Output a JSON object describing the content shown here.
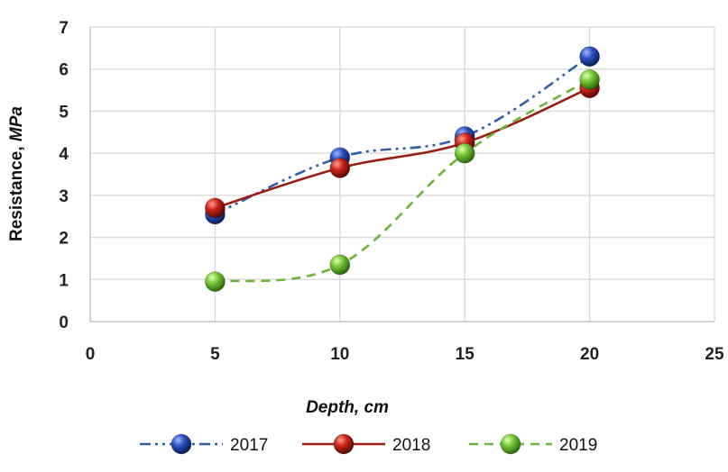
{
  "chart_data": {
    "type": "scatter",
    "xlabel": "Depth, cm",
    "ylabel": "Resistance, MPa",
    "xlim": [
      0,
      25
    ],
    "ylim": [
      0,
      7
    ],
    "xticks": [
      "0",
      "5",
      "10",
      "15",
      "20",
      "25"
    ],
    "yticks": [
      "0",
      "1",
      "2",
      "3",
      "4",
      "5",
      "6",
      "7"
    ],
    "grid": true,
    "legend_position": "bottom",
    "x": [
      5,
      10,
      15,
      20
    ],
    "series": [
      {
        "name": "2017",
        "values": [
          2.55,
          3.9,
          4.4,
          6.3
        ],
        "color": "#1f3f9a",
        "line_color": "#2e5fa8",
        "dash": "dash-dot-dot"
      },
      {
        "name": "2018",
        "values": [
          2.7,
          3.65,
          4.25,
          5.55
        ],
        "color": "#c0201a",
        "line_color": "#9a1e14",
        "dash": "solid"
      },
      {
        "name": "2019",
        "values": [
          0.95,
          1.35,
          4.0,
          5.75
        ],
        "color": "#5fb82e",
        "line_color": "#6ab43a",
        "dash": "dashed"
      }
    ]
  }
}
